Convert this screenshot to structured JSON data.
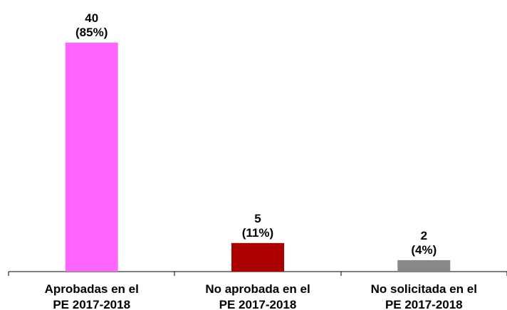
{
  "chart_data": {
    "type": "bar",
    "categories": [
      [
        "Aprobadas en el",
        "PE 2017-2018"
      ],
      [
        "No aprobada en el",
        "PE 2017-2018"
      ],
      [
        "No solicitada en el",
        "PE 2017-2018"
      ]
    ],
    "values": [
      40,
      5,
      2
    ],
    "percent_labels": [
      "(85%)",
      "(11%)",
      "(4%)"
    ],
    "bar_colors": [
      "#ff66ff",
      "#aa0000",
      "#888888"
    ],
    "ylim": [
      0,
      45
    ],
    "grid": false,
    "legend": "none",
    "title": "",
    "xlabel": "",
    "ylabel": ""
  }
}
